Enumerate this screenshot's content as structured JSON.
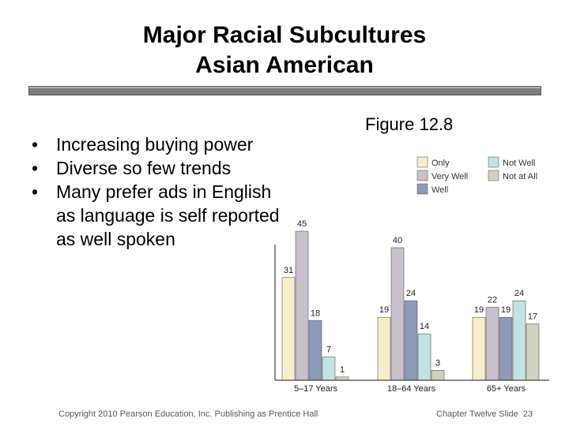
{
  "slide": {
    "title_line1": "Major Racial Subcultures",
    "title_line2": "Asian American",
    "bullets": [
      "Increasing buying power",
      "Diverse so few trends",
      "Many prefer ads in English as language is self reported as well spoken"
    ],
    "figure_label": "Figure 12.8",
    "footer_left": "Copyright 2010 Pearson Education, Inc. Publishing as Prentice Hall",
    "footer_right": "Chapter Twelve Slide",
    "slide_number": "23"
  },
  "chart_data": {
    "type": "bar",
    "categories": [
      "5–17 Years",
      "18–64 Years",
      "65+ Years"
    ],
    "series": [
      {
        "name": "Only",
        "color": "#f5eec8",
        "values": [
          31,
          19,
          19
        ]
      },
      {
        "name": "Very Well",
        "color": "#c8c0cc",
        "values": [
          45,
          40,
          22
        ]
      },
      {
        "name": "Well",
        "color": "#8d9ab8",
        "values": [
          18,
          24,
          19
        ]
      },
      {
        "name": "Not Well",
        "color": "#c3e2e2",
        "values": [
          7,
          14,
          24
        ]
      },
      {
        "name": "Not at All",
        "color": "#cfd2bc",
        "values": [
          1,
          3,
          17
        ]
      }
    ],
    "legend_position": "top-right",
    "data_labels": true,
    "ylim": [
      0,
      50
    ],
    "grid": false
  }
}
